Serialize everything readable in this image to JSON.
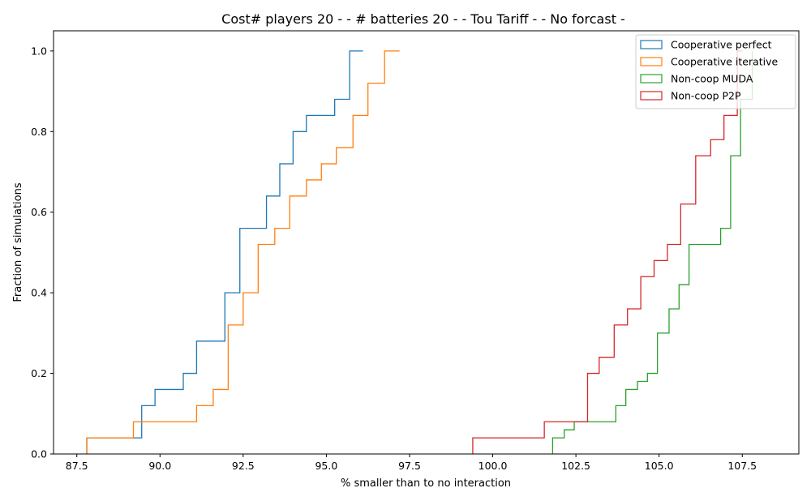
{
  "chart_data": {
    "type": "line",
    "subtype": "step-ecdf",
    "title": "Cost# players 20 - - # batteries 20 - - Tou Tariff -  - No forcast -",
    "xlabel": "% smaller than to no interaction",
    "ylabel": "Fraction of simulations",
    "xlim": [
      86.8,
      109.2
    ],
    "ylim": [
      0,
      1.05
    ],
    "xticks": [
      "87.5",
      "90.0",
      "92.5",
      "95.0",
      "97.5",
      "100.0",
      "102.5",
      "105.0",
      "107.5"
    ],
    "yticks": [
      "0.0",
      "0.2",
      "0.4",
      "0.6",
      "0.8",
      "1.0"
    ],
    "legend_position": "top-right",
    "grid": false,
    "series": [
      {
        "name": "Cooperative perfect",
        "color": "#1f77b4",
        "x": [
          87.8,
          89.45,
          89.85,
          90.7,
          91.1,
          91.95,
          92.4,
          93.2,
          93.6,
          94.0,
          94.4,
          95.25,
          95.7,
          96.1
        ],
        "y": [
          0.04,
          0.12,
          0.16,
          0.2,
          0.28,
          0.4,
          0.56,
          0.64,
          0.72,
          0.8,
          0.84,
          0.88,
          1.0,
          1.0
        ]
      },
      {
        "name": "Cooperative iterative",
        "color": "#ff7f0e",
        "x": [
          87.8,
          89.2,
          91.1,
          91.6,
          92.05,
          92.5,
          92.95,
          93.45,
          93.9,
          94.4,
          94.85,
          95.3,
          95.8,
          96.25,
          96.75,
          97.2
        ],
        "y": [
          0.04,
          0.08,
          0.12,
          0.16,
          0.32,
          0.4,
          0.52,
          0.56,
          0.64,
          0.68,
          0.72,
          0.76,
          0.84,
          0.92,
          1.0,
          1.0
        ]
      },
      {
        "name": "Non-coop MUDA",
        "color": "#2ca02c",
        "x": [
          101.8,
          102.15,
          102.45,
          103.7,
          104.0,
          104.35,
          104.65,
          104.95,
          105.3,
          105.6,
          105.9,
          106.85,
          107.15,
          107.45,
          107.8
        ],
        "y": [
          0.04,
          0.06,
          0.08,
          0.12,
          0.16,
          0.18,
          0.2,
          0.3,
          0.36,
          0.42,
          0.52,
          0.56,
          0.74,
          0.88,
          1.0
        ]
      },
      {
        "name": "Non-coop P2P",
        "color": "#d62728",
        "x": [
          99.4,
          101.55,
          102.85,
          103.2,
          103.65,
          104.05,
          104.45,
          104.85,
          105.25,
          105.65,
          106.1,
          106.55,
          106.95,
          107.35,
          107.5
        ],
        "y": [
          0.04,
          0.08,
          0.2,
          0.24,
          0.32,
          0.36,
          0.44,
          0.48,
          0.52,
          0.62,
          0.74,
          0.78,
          0.84,
          1.0,
          1.0
        ]
      }
    ]
  }
}
